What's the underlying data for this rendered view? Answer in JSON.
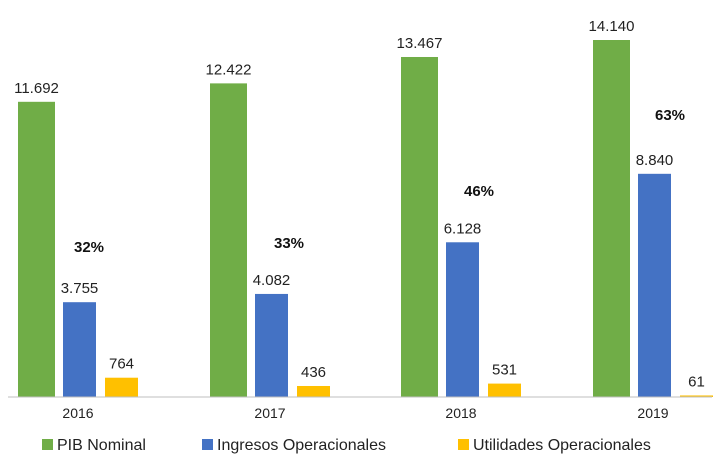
{
  "chart_data": {
    "type": "bar",
    "categories": [
      "2016",
      "2017",
      "2018",
      "2019"
    ],
    "series": [
      {
        "name": "PIB Nominal",
        "color": "#70AD47",
        "values": [
          11692,
          12422,
          13467,
          14140
        ],
        "labels": [
          "11.692",
          "12.422",
          "13.467",
          "14.140"
        ]
      },
      {
        "name": "Ingresos Operacionales",
        "color": "#4472C4",
        "values": [
          3755,
          4082,
          6128,
          8840
        ],
        "labels": [
          "3.755",
          "4.082",
          "6.128",
          "8.840"
        ]
      },
      {
        "name": "Utilidades Operacionales",
        "color": "#FFC000",
        "values": [
          764,
          436,
          531,
          61
        ],
        "labels": [
          "764",
          "436",
          "531",
          "61"
        ]
      }
    ],
    "annotations": [
      "32%",
      "33%",
      "46%",
      "63%"
    ],
    "title": "",
    "xlabel": "",
    "ylabel": "",
    "ylim": [
      0,
      15000
    ],
    "grid": false,
    "legend": "bottom"
  }
}
